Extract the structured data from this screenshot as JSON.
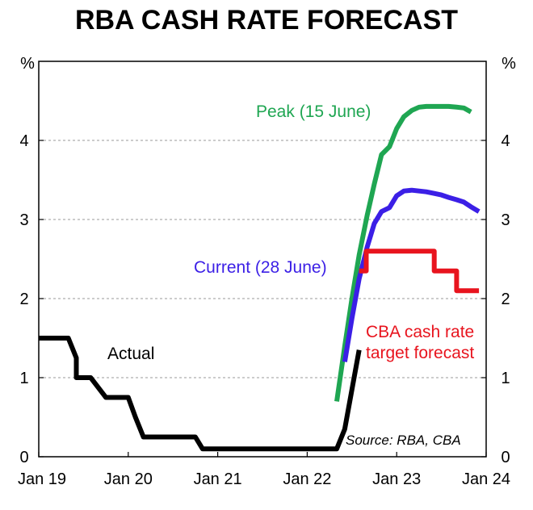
{
  "chart_data": {
    "type": "line",
    "title": "RBA CASH RATE FORECAST",
    "ylabel_left": "%",
    "ylabel_right": "%",
    "xlim": [
      2019.0,
      2024.0
    ],
    "ylim": [
      0,
      5
    ],
    "x_ticks": [
      {
        "x": 2019.0,
        "label": "Jan 19"
      },
      {
        "x": 2020.0,
        "label": "Jan 20"
      },
      {
        "x": 2021.0,
        "label": "Jan 21"
      },
      {
        "x": 2022.0,
        "label": "Jan 22"
      },
      {
        "x": 2023.0,
        "label": "Jan 23"
      },
      {
        "x": 2024.0,
        "label": "Jan 24"
      }
    ],
    "y_ticks": [
      {
        "y": 0,
        "label": "0"
      },
      {
        "y": 1,
        "label": "1"
      },
      {
        "y": 2,
        "label": "2"
      },
      {
        "y": 3,
        "label": "3"
      },
      {
        "y": 4,
        "label": "4"
      }
    ],
    "gridlines_y": [
      1,
      2,
      3,
      4
    ],
    "series": [
      {
        "name": "Peak (15 June)",
        "color": "#1fa652",
        "x": [
          2022.33,
          2022.42,
          2022.5,
          2022.58,
          2022.67,
          2022.75,
          2022.83,
          2022.92,
          2023.0,
          2023.08,
          2023.17,
          2023.25,
          2023.33,
          2023.42,
          2023.5,
          2023.58,
          2023.67,
          2023.75,
          2023.83
        ],
        "values": [
          0.7,
          1.4,
          2.0,
          2.55,
          3.05,
          3.45,
          3.82,
          3.92,
          4.15,
          4.3,
          4.38,
          4.42,
          4.43,
          4.43,
          4.43,
          4.43,
          4.42,
          4.41,
          4.36
        ]
      },
      {
        "name": "Current (28 June)",
        "color": "#3b1fe6",
        "x": [
          2022.42,
          2022.5,
          2022.58,
          2022.67,
          2022.75,
          2022.83,
          2022.92,
          2023.0,
          2023.08,
          2023.17,
          2023.25,
          2023.33,
          2023.42,
          2023.5,
          2023.58,
          2023.67,
          2023.75,
          2023.83,
          2023.92
        ],
        "values": [
          1.2,
          1.75,
          2.25,
          2.65,
          2.95,
          3.1,
          3.15,
          3.3,
          3.36,
          3.37,
          3.36,
          3.35,
          3.33,
          3.31,
          3.28,
          3.25,
          3.22,
          3.16,
          3.1
        ]
      },
      {
        "name": "CBA cash rate target forecast",
        "color": "#e8141e",
        "x": [
          2022.58,
          2022.66,
          2022.66,
          2023.42,
          2023.42,
          2023.67,
          2023.67,
          2023.92
        ],
        "values": [
          2.35,
          2.35,
          2.6,
          2.6,
          2.35,
          2.35,
          2.1,
          2.1
        ]
      },
      {
        "name": "Actual",
        "color": "#000000",
        "x": [
          2019.0,
          2019.33,
          2019.42,
          2019.42,
          2019.58,
          2019.58,
          2019.75,
          2019.75,
          2020.0,
          2020.0,
          2020.08,
          2020.08,
          2020.17,
          2020.17,
          2020.75,
          2020.75,
          2020.83,
          2020.83,
          2022.33,
          2022.33,
          2022.42,
          2022.42,
          2022.5,
          2022.5,
          2022.58
        ],
        "values": [
          1.5,
          1.5,
          1.25,
          1.0,
          1.0,
          1.0,
          0.75,
          0.75,
          0.75,
          0.75,
          0.5,
          0.5,
          0.25,
          0.25,
          0.25,
          0.25,
          0.1,
          0.1,
          0.1,
          0.1,
          0.35,
          0.35,
          0.85,
          0.85,
          1.35
        ]
      }
    ],
    "annotations": [
      {
        "text": "Peak (15 June)",
        "color": "#1fa652"
      },
      {
        "text": "Current (28 June)",
        "color": "#3b1fe6"
      },
      {
        "text": "CBA cash rate",
        "color": "#e8141e"
      },
      {
        "text": "target forecast",
        "color": "#e8141e"
      },
      {
        "text": "Actual",
        "color": "#000000"
      }
    ],
    "source": "Source: RBA, CBA"
  }
}
